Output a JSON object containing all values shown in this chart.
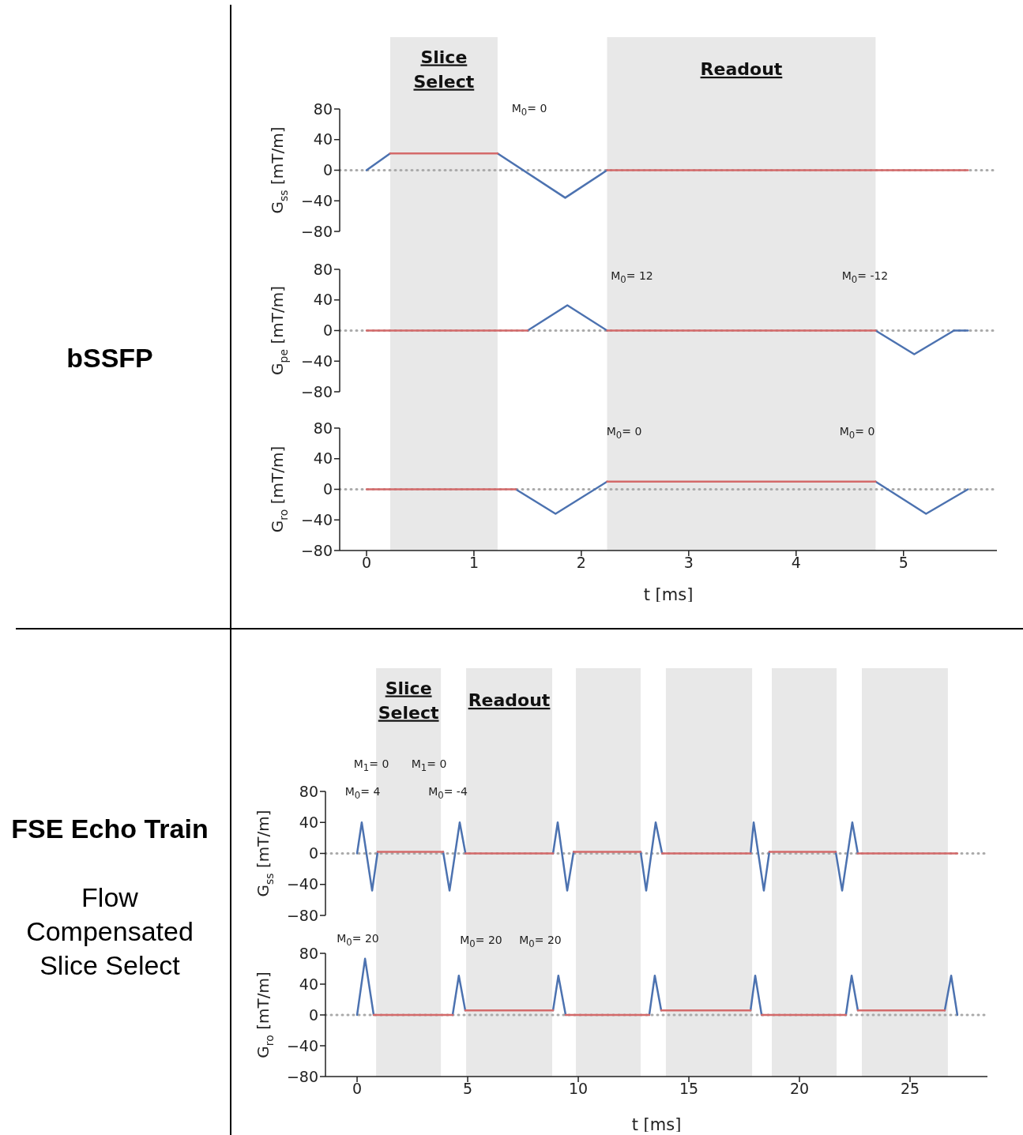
{
  "chart_data": [
    {
      "type": "line",
      "ylabel": "G$_{ss}$ [mT/m]",
      "xlim": [
        -0.25,
        5.87
      ],
      "xticks": [
        0,
        1,
        2,
        3,
        4,
        5
      ],
      "ylim": [
        -80,
        80
      ],
      "yticks": [
        -80,
        -40,
        0,
        40,
        80
      ],
      "tick_labels": "y",
      "series": [
        {
          "color": "#4c72b0",
          "x": [
            0,
            0.22,
            0.5,
            1.22,
            1.85,
            2.24
          ],
          "values": [
            0,
            22,
            null,
            22,
            -36,
            0
          ]
        },
        {
          "color": "#d46a6a",
          "x": [
            0.22,
            1.22,
            1.5,
            2.24,
            5.6
          ],
          "values": [
            22,
            22,
            null,
            0,
            0
          ]
        }
      ],
      "bands": [
        {
          "axis": "x",
          "from": 0.22,
          "to": 1.22,
          "label": "Slice Select",
          "color": "#e8e8e8"
        },
        {
          "axis": "x",
          "from": 2.24,
          "to": 4.74,
          "label": "Readout",
          "color": "#e8e8e8"
        }
      ],
      "ref_lines": [
        {
          "axis": "y",
          "value": 0,
          "color": "#aaaaaa",
          "line_style": "dotted"
        }
      ],
      "title": "bSSFP",
      "annotations": [
        "M$_{0}$= 0"
      ]
    },
    {
      "type": "line",
      "ylabel": "G$_{pe}$ [mT/m]",
      "xlim": [
        -0.25,
        5.87
      ],
      "xticks": [
        0,
        1,
        2,
        3,
        4,
        5
      ],
      "ylim": [
        -80,
        80
      ],
      "yticks": [
        -80,
        -40,
        0,
        40,
        80
      ],
      "tick_labels": "y",
      "series": [
        {
          "color": "#4c72b0",
          "x": [
            1.5,
            1.87,
            2.24,
            3,
            4.74,
            5.1,
            5.47,
            5.6
          ],
          "values": [
            0,
            33,
            0,
            null,
            0,
            -31,
            0,
            0
          ]
        },
        {
          "color": "#d46a6a",
          "x": [
            0,
            1.5,
            1.87,
            2.24,
            4.74
          ],
          "values": [
            0,
            0,
            null,
            0,
            0
          ]
        }
      ],
      "bands": [
        {
          "axis": "x",
          "from": 0.22,
          "to": 1.22,
          "color": "#e8e8e8"
        },
        {
          "axis": "x",
          "from": 2.24,
          "to": 4.74,
          "color": "#e8e8e8"
        }
      ],
      "ref_lines": [
        {
          "axis": "y",
          "value": 0,
          "color": "#aaaaaa",
          "line_style": "dotted"
        }
      ],
      "annotations": [
        "M$_{0}$= 12",
        "M$_{0}$= -12"
      ]
    },
    {
      "type": "line",
      "xlabel": "t [ms]",
      "ylabel": "G$_{ro}$ [mT/m]",
      "xlim": [
        -0.25,
        5.87
      ],
      "xticks": [
        0,
        1,
        2,
        3,
        4,
        5
      ],
      "ylim": [
        -80,
        80
      ],
      "yticks": [
        -80,
        -40,
        0,
        40,
        80
      ],
      "series": [
        {
          "color": "#4c72b0",
          "x": [
            1.39,
            1.76,
            2.24,
            3,
            4.74,
            5.21,
            5.6
          ],
          "values": [
            0,
            -32,
            10,
            null,
            10,
            -32,
            0
          ]
        },
        {
          "color": "#d46a6a",
          "x": [
            0,
            1.39,
            1.8,
            2.24,
            4.74
          ],
          "values": [
            0,
            0,
            null,
            10,
            10
          ]
        }
      ],
      "bands": [
        {
          "axis": "x",
          "from": 0.22,
          "to": 1.22,
          "color": "#e8e8e8"
        },
        {
          "axis": "x",
          "from": 2.24,
          "to": 4.74,
          "color": "#e8e8e8"
        }
      ],
      "ref_lines": [
        {
          "axis": "y",
          "value": 0,
          "color": "#aaaaaa",
          "line_style": "dotted"
        }
      ],
      "annotations": [
        "M$_{0}$= 0",
        "M$_{0}$= 0"
      ]
    },
    {
      "type": "line",
      "ylabel": "G$_{ss}$ [mT/m]",
      "xlim": [
        -1.43,
        28.5
      ],
      "xticks": [
        0,
        5,
        10,
        15,
        20,
        25
      ],
      "ylim": [
        -80,
        80
      ],
      "yticks": [
        -80,
        -40,
        0,
        40,
        80
      ],
      "tick_labels": "y",
      "series": [
        {
          "color": "#4c72b0",
          "x": [
            0,
            0.21,
            0.68,
            0.93,
            2,
            3.89,
            4.18,
            4.64,
            4.9,
            7,
            8.86,
            9.07,
            9.5,
            9.79,
            11,
            12.82,
            13.07,
            13.5,
            13.79,
            16,
            17.79,
            17.93,
            18.39,
            18.64,
            20,
            21.64,
            21.93,
            22.39,
            22.64
          ],
          "values": [
            0,
            40,
            -48,
            2,
            null,
            2,
            -48,
            40,
            0,
            null,
            0,
            40,
            -48,
            2,
            null,
            2,
            -48,
            40,
            0,
            null,
            0,
            40,
            -48,
            2,
            null,
            2,
            -48,
            40,
            0
          ]
        },
        {
          "color": "#d46a6a",
          "x": [
            0.93,
            3.89,
            4.4,
            4.9,
            8.86,
            9.3,
            9.79,
            12.82,
            13.3,
            13.79,
            17.79,
            18.2,
            18.64,
            21.64,
            22.1,
            22.64,
            27.14
          ],
          "values": [
            2,
            2,
            null,
            0,
            0,
            null,
            2,
            2,
            null,
            0,
            0,
            null,
            2,
            2,
            null,
            0,
            0
          ]
        }
      ],
      "bands": [
        {
          "axis": "x",
          "from": 0.86,
          "to": 3.79,
          "label": "Slice Select",
          "color": "#e8e8e8"
        },
        {
          "axis": "x",
          "from": 4.93,
          "to": 8.82,
          "label": "Readout",
          "color": "#e8e8e8"
        },
        {
          "axis": "x",
          "from": 9.89,
          "to": 12.82,
          "color": "#e8e8e8"
        },
        {
          "axis": "x",
          "from": 13.96,
          "to": 17.86,
          "color": "#e8e8e8"
        },
        {
          "axis": "x",
          "from": 18.75,
          "to": 21.68,
          "color": "#e8e8e8"
        },
        {
          "axis": "x",
          "from": 22.82,
          "to": 26.71,
          "color": "#e8e8e8"
        }
      ],
      "ref_lines": [
        {
          "axis": "y",
          "value": 0,
          "color": "#aaaaaa",
          "line_style": "dotted"
        }
      ],
      "title": "FSE Echo Train",
      "subtitle": "Flow Compensated Slice Select",
      "annotations": [
        "M$_{1}$= 0",
        "M$_{1}$= 0",
        "M$_{0}$= 4",
        "M$_{0}$= -4"
      ]
    },
    {
      "type": "line",
      "xlabel": "t [ms]",
      "ylabel": "G$_{ro}$ [mT/m]",
      "xlim": [
        -1.43,
        28.5
      ],
      "xticks": [
        0,
        5,
        10,
        15,
        20,
        25
      ],
      "ylim": [
        -80,
        80
      ],
      "yticks": [
        -80,
        -40,
        0,
        40,
        80
      ],
      "series": [
        {
          "color": "#4c72b0",
          "x": [
            0,
            0.36,
            0.75,
            2,
            4.32,
            4.6,
            4.89,
            7,
            8.86,
            9.1,
            9.43,
            11,
            13.21,
            13.46,
            13.75,
            16,
            17.79,
            18.0,
            18.29,
            20,
            22.1,
            22.36,
            22.64,
            24,
            26.57,
            26.86,
            27.14
          ],
          "values": [
            0,
            73,
            0,
            null,
            0,
            51,
            6,
            null,
            6,
            51,
            0,
            null,
            0,
            51,
            6,
            null,
            6,
            51,
            0,
            null,
            0,
            51,
            6,
            null,
            6,
            51,
            0
          ]
        },
        {
          "color": "#d46a6a",
          "x": [
            0.75,
            4.32,
            4.6,
            4.89,
            8.86,
            9.1,
            9.43,
            13.21,
            13.46,
            13.75,
            17.79,
            18.0,
            18.29,
            22.1,
            22.36,
            22.64,
            26.57
          ],
          "values": [
            0,
            0,
            null,
            6,
            6,
            null,
            0,
            0,
            null,
            6,
            6,
            null,
            0,
            0,
            null,
            6,
            6
          ]
        }
      ],
      "bands": [
        {
          "axis": "x",
          "from": 0.86,
          "to": 3.79,
          "color": "#e8e8e8"
        },
        {
          "axis": "x",
          "from": 4.93,
          "to": 8.82,
          "color": "#e8e8e8"
        },
        {
          "axis": "x",
          "from": 9.89,
          "to": 12.82,
          "color": "#e8e8e8"
        },
        {
          "axis": "x",
          "from": 13.96,
          "to": 17.86,
          "color": "#e8e8e8"
        },
        {
          "axis": "x",
          "from": 18.75,
          "to": 21.68,
          "color": "#e8e8e8"
        },
        {
          "axis": "x",
          "from": 22.82,
          "to": 26.71,
          "color": "#e8e8e8"
        }
      ],
      "ref_lines": [
        {
          "axis": "y",
          "value": 0,
          "color": "#aaaaaa",
          "line_style": "dotted"
        }
      ],
      "annotations": [
        "M$_{0}$= 20",
        "M$_{0}$= 20",
        "M$_{0}$= 20"
      ]
    }
  ]
}
